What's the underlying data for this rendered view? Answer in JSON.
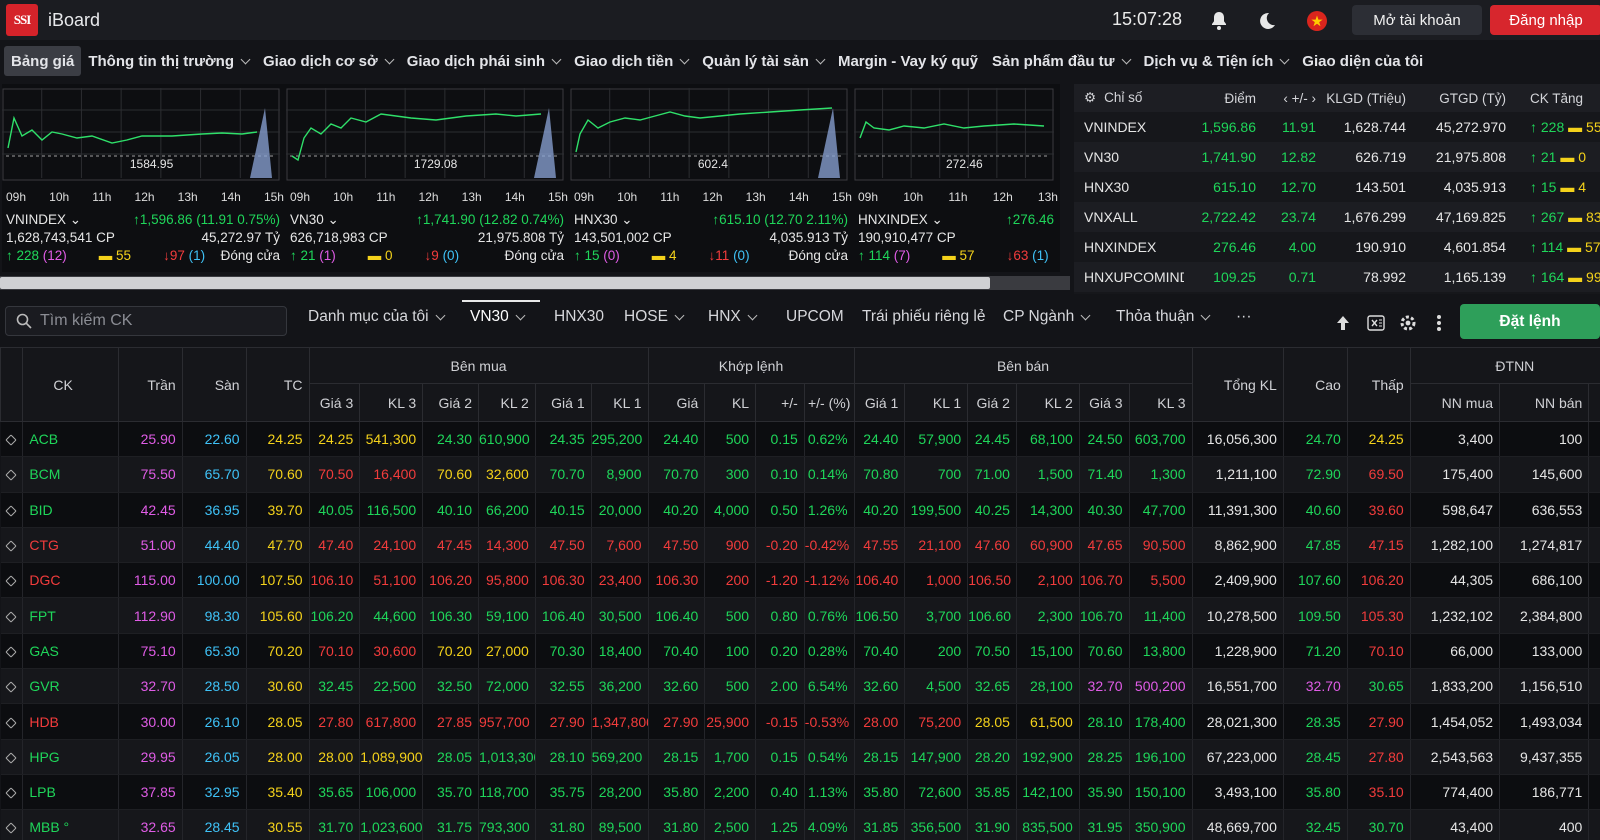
{
  "header": {
    "logo": "SSI",
    "app_name": "iBoard",
    "time": "15:07:28",
    "open_account": "Mở tài khoản",
    "login": "Đăng nhập"
  },
  "menu": [
    "Bảng giá",
    "Thông tin thị trường",
    "Giao dịch cơ sở",
    "Giao dịch phái sinh",
    "Giao dịch tiền",
    "Quản lý tài sản",
    "Margin - Vay ký quỹ",
    "Sản phẩm đầu tư",
    "Dịch vụ & Tiện ích",
    "Giao diện của tôi"
  ],
  "charts": [
    {
      "name": "VNINDEX",
      "ref_label": "1584.95",
      "change": "1,596.86 (11.91 0.75%)",
      "volume": "1,628,743,541 CP",
      "value": "45,272.97 Tỷ",
      "up": "228",
      "up_ceil": "(12)",
      "flat": "55",
      "down": "97",
      "down_floor": "(1)",
      "status": "Đóng cửa",
      "times": [
        "09h",
        "10h",
        "11h",
        "12h",
        "13h",
        "14h",
        "15h"
      ]
    },
    {
      "name": "VN30",
      "ref_label": "1729.08",
      "change": "1,741.90 (12.82 0.74%)",
      "volume": "626,718,983 CP",
      "value": "21,975.808 Tỷ",
      "up": "21",
      "up_ceil": "(1)",
      "flat": "0",
      "down": "9",
      "down_floor": "(0)",
      "status": "Đóng cửa",
      "times": [
        "09h",
        "10h",
        "11h",
        "12h",
        "13h",
        "14h",
        "15h"
      ]
    },
    {
      "name": "HNX30",
      "ref_label": "602.4",
      "change": "615.10 (12.70 2.11%)",
      "volume": "143,501,002 CP",
      "value": "4,035.913 Tỷ",
      "up": "15",
      "up_ceil": "(0)",
      "flat": "4",
      "down": "11",
      "down_floor": "(0)",
      "status": "Đóng cửa",
      "times": [
        "09h",
        "10h",
        "11h",
        "12h",
        "13h",
        "14h",
        "15h"
      ]
    },
    {
      "name": "HNXINDEX",
      "ref_label": "272.46",
      "change": "276.46",
      "volume": "190,910,477 CP",
      "value": "",
      "up": "114",
      "up_ceil": "(7)",
      "flat": "57",
      "down": "63",
      "down_floor": "(1)",
      "status": "",
      "times": [
        "09h",
        "10h",
        "11h",
        "12h",
        "13h"
      ]
    }
  ],
  "index_table": {
    "headers": [
      "Chỉ số",
      "Điểm",
      "+/-",
      "KLGD (Triệu)",
      "GTGD (Tỷ)",
      "CK Tăng"
    ],
    "rows": [
      {
        "name": "VNINDEX",
        "point": "1,596.86",
        "chg": "11.91",
        "vol": "1,628.744",
        "val": "45,272.970",
        "up": "228",
        "flat": "55"
      },
      {
        "name": "VN30",
        "point": "1,741.90",
        "chg": "12.82",
        "vol": "626.719",
        "val": "21,975.808",
        "up": "21",
        "flat": "0"
      },
      {
        "name": "HNX30",
        "point": "615.10",
        "chg": "12.70",
        "vol": "143.501",
        "val": "4,035.913",
        "up": "15",
        "flat": "4"
      },
      {
        "name": "VNXALL",
        "point": "2,722.42",
        "chg": "23.74",
        "vol": "1,676.299",
        "val": "47,169.825",
        "up": "267",
        "flat": "83"
      },
      {
        "name": "HNXINDEX",
        "point": "276.46",
        "chg": "4.00",
        "vol": "190.910",
        "val": "4,601.854",
        "up": "114",
        "flat": "57"
      },
      {
        "name": "HNXUPCOMINDEX",
        "point": "109.25",
        "chg": "0.71",
        "vol": "78.992",
        "val": "1,165.139",
        "up": "164",
        "flat": "99"
      }
    ]
  },
  "toolbar": {
    "search_placeholder": "Tìm kiếm CK",
    "tabs": [
      "Danh mục của tôi",
      "VN30",
      "HNX30",
      "HOSE",
      "HNX",
      "UPCOM",
      "Trái phiếu riêng lẻ",
      "CP Ngành",
      "Thỏa thuận",
      "···"
    ],
    "order": "Đặt lệnh"
  },
  "grid": {
    "groups": {
      "buy": "Bên mua",
      "match": "Khớp lệnh",
      "sell": "Bên bán",
      "foreign": "ĐTNN"
    },
    "headers": {
      "ck": "CK",
      "ceil": "Trần",
      "floor": "Sàn",
      "ref": "TC",
      "g3": "Giá 3",
      "kl3": "KL 3",
      "g2": "Giá 2",
      "kl2": "KL 2",
      "g1": "Giá 1",
      "kl1": "KL 1",
      "price": "Giá",
      "kl": "KL",
      "chg": "+/-",
      "pct": "+/- (%)",
      "total": "Tổng KL",
      "high": "Cao",
      "low": "Thấp",
      "nnbuy": "NN mua",
      "nnsell": "NN bán"
    },
    "rows": [
      [
        "ACB",
        "25.90",
        "22.60",
        "24.25",
        "24.25",
        "541,300",
        "24.30",
        "610,900",
        "24.35",
        "295,200",
        "24.40",
        "500",
        "0.15",
        "0.62%",
        "24.40",
        "57,900",
        "24.45",
        "68,100",
        "24.50",
        "603,700",
        "16,056,300",
        "24.70",
        "24.25",
        "3,400",
        "100"
      ],
      [
        "BCM",
        "75.50",
        "65.70",
        "70.60",
        "70.50",
        "16,400",
        "70.60",
        "32,600",
        "70.70",
        "8,900",
        "70.70",
        "300",
        "0.10",
        "0.14%",
        "70.80",
        "700",
        "71.00",
        "1,500",
        "71.40",
        "1,300",
        "1,211,100",
        "72.90",
        "69.50",
        "175,400",
        "145,600"
      ],
      [
        "BID",
        "42.45",
        "36.95",
        "39.70",
        "40.05",
        "116,500",
        "40.10",
        "66,200",
        "40.15",
        "20,000",
        "40.20",
        "4,000",
        "0.50",
        "1.26%",
        "40.20",
        "199,500",
        "40.25",
        "14,300",
        "40.30",
        "47,700",
        "11,391,300",
        "40.60",
        "39.60",
        "598,647",
        "636,553"
      ],
      [
        "CTG",
        "51.00",
        "44.40",
        "47.70",
        "47.40",
        "24,100",
        "47.45",
        "14,300",
        "47.50",
        "7,600",
        "47.50",
        "900",
        "-0.20",
        "-0.42%",
        "47.55",
        "21,100",
        "47.60",
        "60,900",
        "47.65",
        "90,500",
        "8,862,900",
        "47.85",
        "47.15",
        "1,282,100",
        "1,274,817"
      ],
      [
        "DGC",
        "115.00",
        "100.00",
        "107.50",
        "106.10",
        "51,100",
        "106.20",
        "95,800",
        "106.30",
        "23,400",
        "106.30",
        "200",
        "-1.20",
        "-1.12%",
        "106.40",
        "1,000",
        "106.50",
        "2,100",
        "106.70",
        "5,500",
        "2,409,900",
        "107.60",
        "106.20",
        "44,305",
        "686,100"
      ],
      [
        "FPT",
        "112.90",
        "98.30",
        "105.60",
        "106.20",
        "44,600",
        "106.30",
        "59,100",
        "106.40",
        "30,500",
        "106.40",
        "500",
        "0.80",
        "0.76%",
        "106.50",
        "3,700",
        "106.60",
        "2,300",
        "106.70",
        "11,400",
        "10,278,500",
        "109.50",
        "105.30",
        "1,232,102",
        "2,384,800"
      ],
      [
        "GAS",
        "75.10",
        "65.30",
        "70.20",
        "70.10",
        "30,600",
        "70.20",
        "27,000",
        "70.30",
        "18,400",
        "70.40",
        "100",
        "0.20",
        "0.28%",
        "70.40",
        "200",
        "70.50",
        "15,100",
        "70.60",
        "13,800",
        "1,228,900",
        "71.20",
        "70.10",
        "66,000",
        "133,000"
      ],
      [
        "GVR",
        "32.70",
        "28.50",
        "30.60",
        "32.45",
        "22,500",
        "32.50",
        "72,000",
        "32.55",
        "36,200",
        "32.60",
        "500",
        "2.00",
        "6.54%",
        "32.60",
        "4,500",
        "32.65",
        "28,100",
        "32.70",
        "500,200",
        "16,551,700",
        "32.70",
        "30.65",
        "1,833,200",
        "1,156,510"
      ],
      [
        "HDB",
        "30.00",
        "26.10",
        "28.05",
        "27.80",
        "617,800",
        "27.85",
        "957,700",
        "27.90",
        "1,347,800",
        "27.90",
        "25,900",
        "-0.15",
        "-0.53%",
        "28.00",
        "75,200",
        "28.05",
        "61,500",
        "28.10",
        "178,400",
        "28,021,300",
        "28.35",
        "27.90",
        "1,454,052",
        "1,493,034"
      ],
      [
        "HPG",
        "29.95",
        "26.05",
        "28.00",
        "28.00",
        "1,089,900",
        "28.05",
        "1,013,300",
        "28.10",
        "569,200",
        "28.15",
        "1,700",
        "0.15",
        "0.54%",
        "28.15",
        "147,900",
        "28.20",
        "192,900",
        "28.25",
        "196,100",
        "67,223,000",
        "28.45",
        "27.80",
        "2,543,563",
        "9,437,355"
      ],
      [
        "LPB",
        "37.85",
        "32.95",
        "35.40",
        "35.65",
        "106,000",
        "35.70",
        "118,700",
        "35.75",
        "28,200",
        "35.80",
        "2,200",
        "0.40",
        "1.13%",
        "35.80",
        "72,600",
        "35.85",
        "142,100",
        "35.90",
        "150,100",
        "3,493,100",
        "35.80",
        "35.10",
        "774,400",
        "186,771"
      ],
      [
        "MBB °",
        "32.65",
        "28.45",
        "30.55",
        "31.70",
        "1,023,600",
        "31.75",
        "793,300",
        "31.80",
        "89,500",
        "31.80",
        "2,500",
        "1.25",
        "4.09%",
        "31.85",
        "356,500",
        "31.90",
        "835,500",
        "31.95",
        "350,900",
        "48,669,700",
        "32.45",
        "30.70",
        "43,400",
        "400"
      ]
    ]
  },
  "colors": {
    "up": "#1fd65a",
    "down": "#f23c3c",
    "ref": "#f4d21b",
    "ceil": "#e05ce6",
    "floor": "#3fc2f7",
    "order_btn": "#2e9f5a",
    "login_btn": "#d7262d"
  }
}
